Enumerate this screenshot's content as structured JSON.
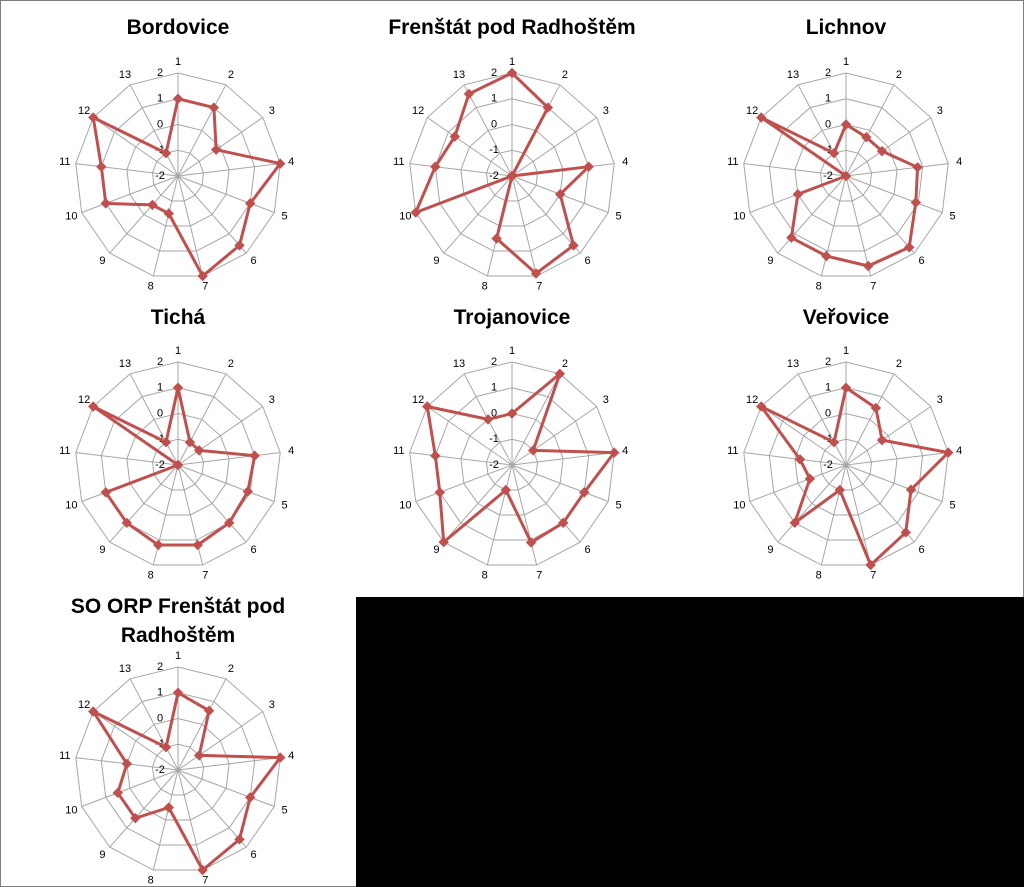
{
  "chart_data": [
    {
      "type": "radar",
      "title": "Bordovice",
      "categories": [
        "1",
        "2",
        "3",
        "4",
        "5",
        "6",
        "7",
        "8",
        "9",
        "10",
        "11",
        "12",
        "13"
      ],
      "rlim": [
        -2,
        2
      ],
      "ticks": [
        "-2",
        "-1",
        "0",
        "1",
        "2"
      ],
      "series": [
        {
          "values": [
            1,
            1,
            -0.2,
            2,
            1,
            1.6,
            2,
            -0.5,
            -0.5,
            1,
            1,
            2,
            -1
          ],
          "color": "#c0504d"
        }
      ]
    },
    {
      "type": "radar",
      "title": "Frenštát pod Radhoštěm",
      "categories": [
        "1",
        "2",
        "3",
        "4",
        "5",
        "6",
        "7",
        "8",
        "9",
        "10",
        "11",
        "12",
        "13"
      ],
      "rlim": [
        -2,
        2
      ],
      "ticks": [
        "-2",
        "-1",
        "0",
        "1",
        "2"
      ],
      "series": [
        {
          "values": [
            2,
            1,
            -2,
            1,
            0,
            1.6,
            1.9,
            0.5,
            -2,
            2,
            1,
            0.7,
            1.6
          ],
          "color": "#c0504d"
        }
      ]
    },
    {
      "type": "radar",
      "title": "Lichnov",
      "categories": [
        "1",
        "2",
        "3",
        "4",
        "5",
        "6",
        "7",
        "8",
        "9",
        "10",
        "11",
        "12",
        "13"
      ],
      "rlim": [
        -2,
        2
      ],
      "ticks": [
        "-2",
        "-1",
        "0",
        "1",
        "2"
      ],
      "series": [
        {
          "values": [
            0,
            -0.3,
            -0.3,
            0.8,
            0.9,
            1.7,
            1.6,
            1.2,
            1.2,
            0,
            -2,
            2,
            -1
          ],
          "color": "#c0504d"
        }
      ]
    },
    {
      "type": "radar",
      "title": "Tichá",
      "categories": [
        "1",
        "2",
        "3",
        "4",
        "5",
        "6",
        "7",
        "8",
        "9",
        "10",
        "11",
        "12",
        "13"
      ],
      "rlim": [
        -2,
        2
      ],
      "ticks": [
        "-2",
        "-1",
        "0",
        "1",
        "2"
      ],
      "series": [
        {
          "values": [
            1,
            -1,
            -1,
            1,
            0.9,
            1,
            1.2,
            1.2,
            1,
            1,
            -2,
            2,
            -1
          ],
          "color": "#c0504d"
        }
      ]
    },
    {
      "type": "radar",
      "title": "Trojanovice",
      "categories": [
        "1",
        "2",
        "3",
        "4",
        "5",
        "6",
        "7",
        "8",
        "9",
        "10",
        "11",
        "12",
        "13"
      ],
      "rlim": [
        -2,
        2
      ],
      "ticks": [
        "-2",
        "-1",
        "0",
        "1",
        "2"
      ],
      "series": [
        {
          "values": [
            0,
            2,
            -1,
            2,
            1,
            1,
            1.1,
            -1,
            2,
            1,
            1,
            2,
            0
          ],
          "color": "#c0504d"
        }
      ]
    },
    {
      "type": "radar",
      "title": "Veřovice",
      "categories": [
        "1",
        "2",
        "3",
        "4",
        "5",
        "6",
        "7",
        "8",
        "9",
        "10",
        "11",
        "12",
        "13"
      ],
      "rlim": [
        -2,
        2
      ],
      "ticks": [
        "-2",
        "-1",
        "0",
        "1",
        "2"
      ],
      "series": [
        {
          "values": [
            1,
            0.5,
            -0.3,
            2,
            0.7,
            1.5,
            2,
            -1,
            1,
            -0.5,
            -0.2,
            2,
            -1
          ],
          "color": "#c0504d"
        }
      ]
    },
    {
      "type": "radar",
      "title": "SO ORP Frenštát pod Radhoštěm",
      "categories": [
        "1",
        "2",
        "3",
        "4",
        "5",
        "6",
        "7",
        "8",
        "9",
        "10",
        "11",
        "12",
        "13"
      ],
      "rlim": [
        -2,
        2
      ],
      "ticks": [
        "-2",
        "-1",
        "0",
        "1",
        "2"
      ],
      "series": [
        {
          "values": [
            1,
            0.6,
            -1,
            2,
            1,
            1.6,
            2,
            -0.5,
            0.5,
            0.5,
            0,
            2,
            -1
          ],
          "color": "#c0504d"
        }
      ]
    }
  ]
}
